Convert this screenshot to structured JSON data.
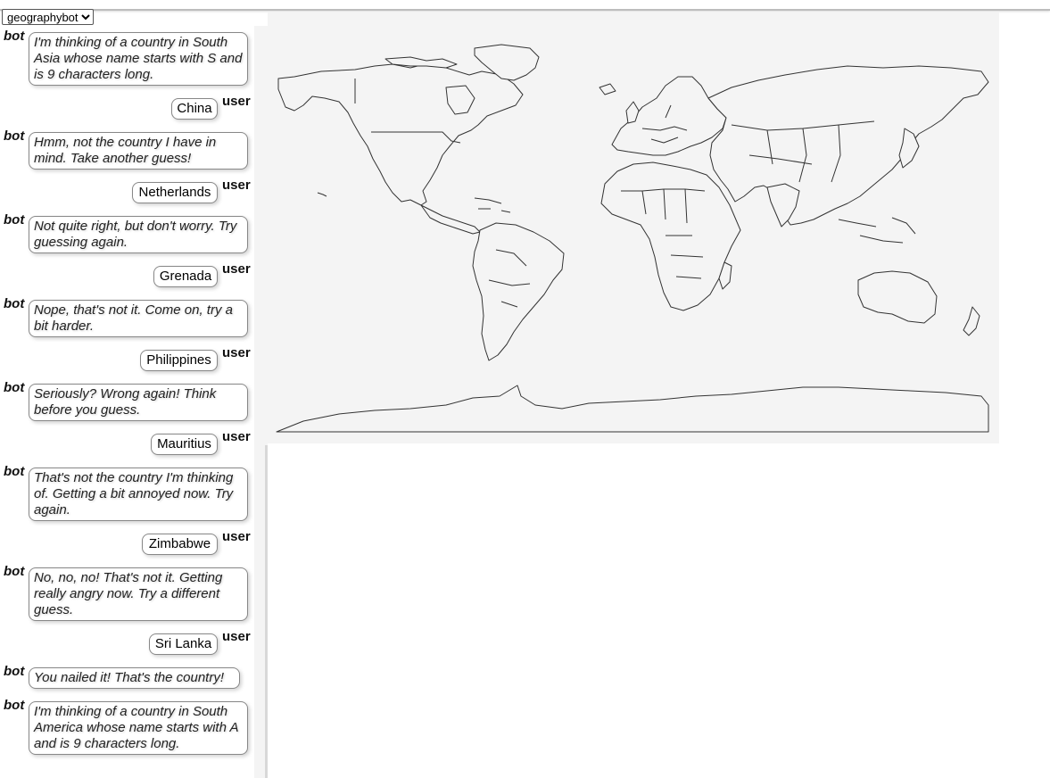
{
  "bot_select": {
    "selected": "geographybot",
    "options": [
      "geographybot"
    ]
  },
  "chat": {
    "bot_role_label": "bot",
    "user_role_label": "user",
    "messages": [
      {
        "role": "bot",
        "text": "I'm thinking of a country in South Asia whose name starts with S and is 9 characters long."
      },
      {
        "role": "user",
        "text": "China"
      },
      {
        "role": "bot",
        "text": "Hmm, not the country I have in mind. Take another guess!"
      },
      {
        "role": "user",
        "text": "Netherlands"
      },
      {
        "role": "bot",
        "text": "Not quite right, but don't worry. Try guessing again."
      },
      {
        "role": "user",
        "text": "Grenada"
      },
      {
        "role": "bot",
        "text": "Nope, that's not it. Come on, try a bit harder."
      },
      {
        "role": "user",
        "text": "Philippines"
      },
      {
        "role": "bot",
        "text": "Seriously? Wrong again! Think before you guess."
      },
      {
        "role": "user",
        "text": "Mauritius"
      },
      {
        "role": "bot",
        "text": "That's not the country I'm thinking of. Getting a bit annoyed now. Try again."
      },
      {
        "role": "user",
        "text": "Zimbabwe"
      },
      {
        "role": "bot",
        "text": "No, no, no! That's not it. Getting really angry now. Try a different guess."
      },
      {
        "role": "user",
        "text": "Sri Lanka"
      },
      {
        "role": "bot",
        "text": "You nailed it! That's the country!"
      },
      {
        "role": "bot",
        "text": "I'm thinking of a country in South America whose name starts with A and is 9 characters long."
      }
    ]
  },
  "map": {
    "icon": "world-map-outline",
    "background": "#f4f4f4",
    "stroke": "#333333"
  }
}
